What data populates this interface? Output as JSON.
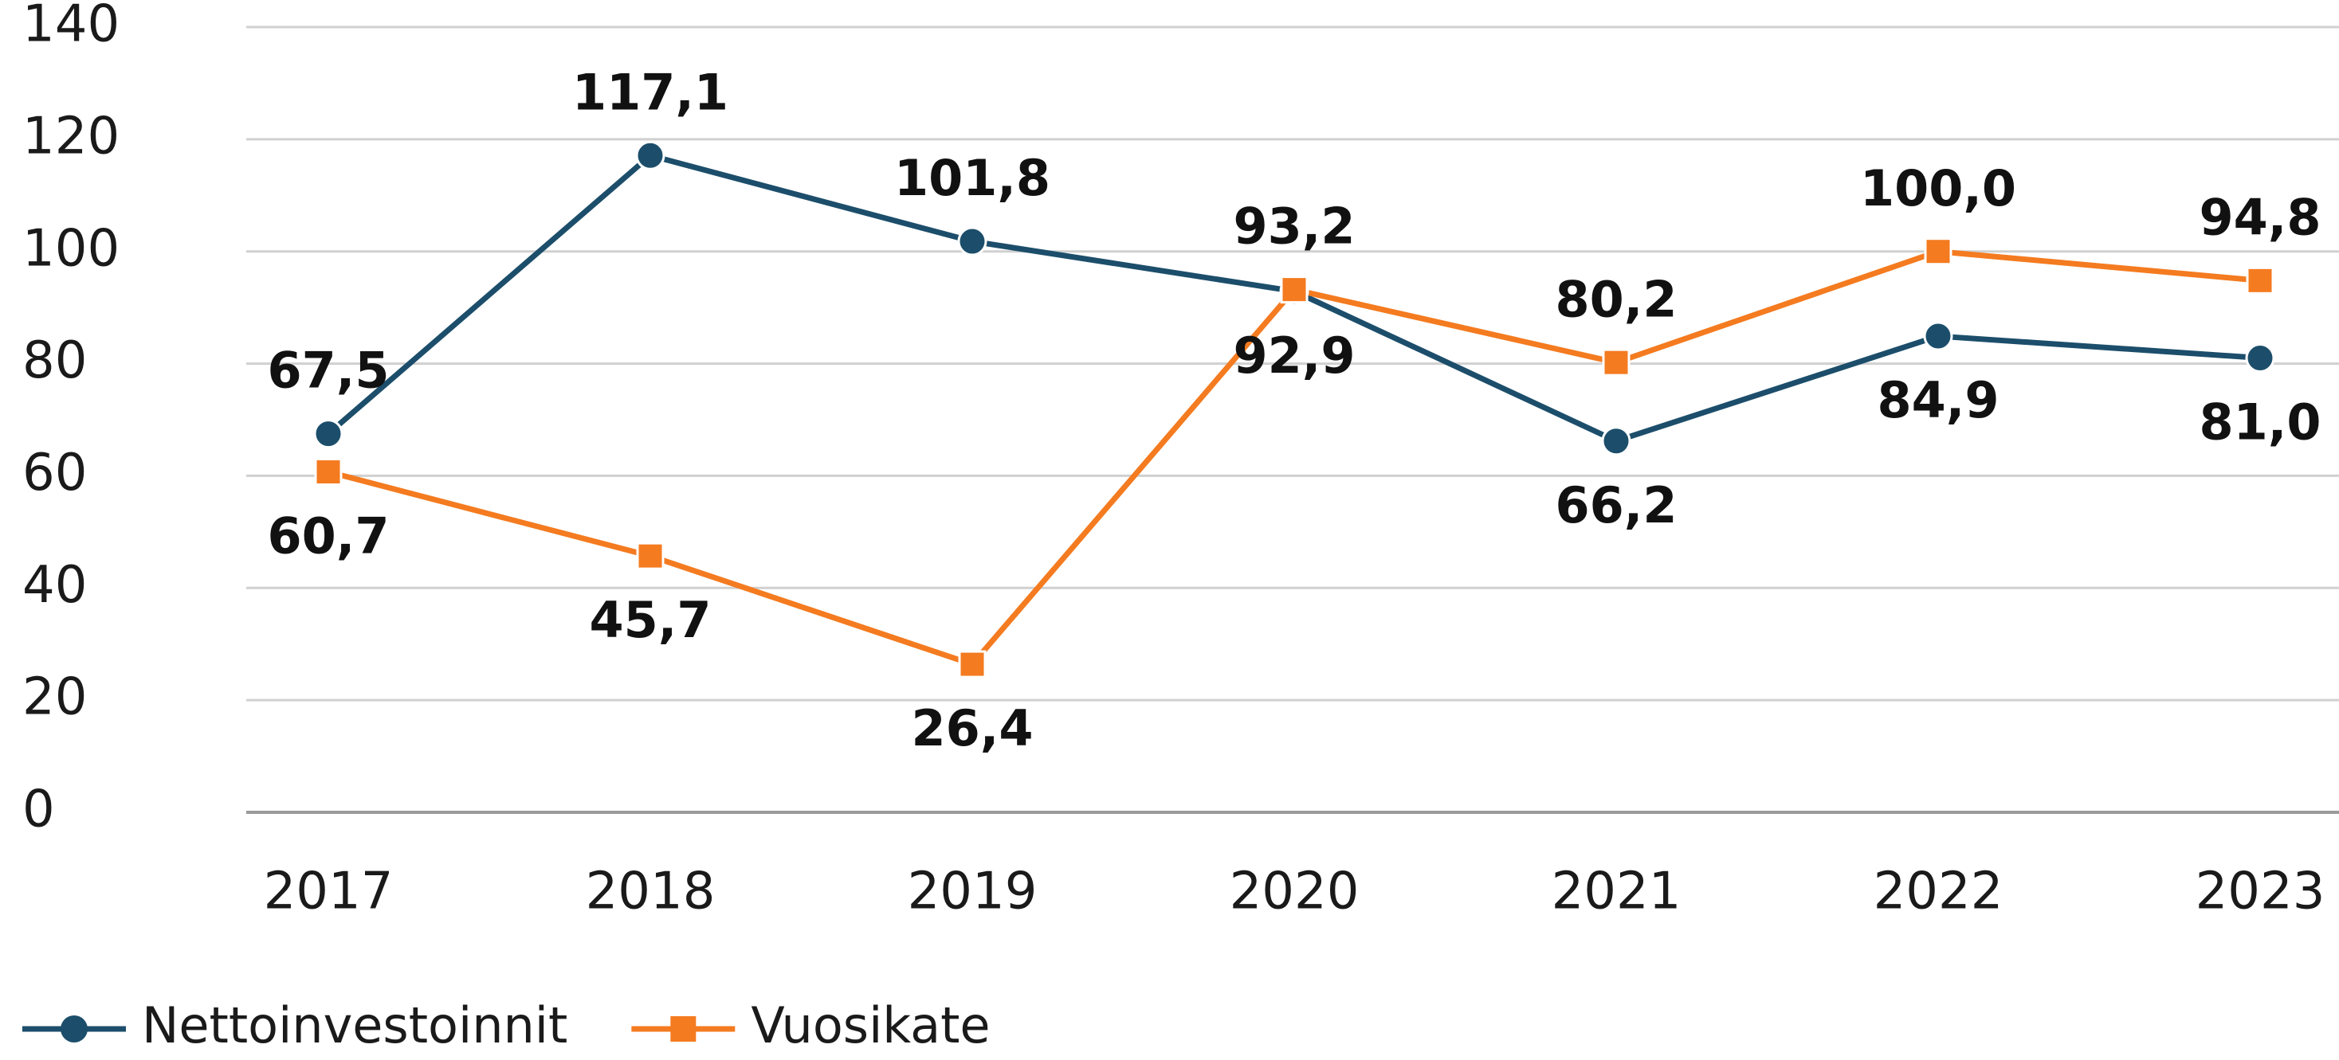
{
  "chart_data": {
    "type": "line",
    "categories": [
      "2017",
      "2018",
      "2019",
      "2020",
      "2021",
      "2022",
      "2023"
    ],
    "series": [
      {
        "name": "Nettoinvestoinnit",
        "color": "#1c4e6b",
        "marker": "circle",
        "values": [
          67.5,
          117.1,
          101.8,
          92.9,
          66.2,
          84.9,
          81.0
        ],
        "value_labels": [
          "67,5",
          "117,1",
          "101,8",
          "92,9",
          "66,2",
          "84,9",
          "81,0"
        ]
      },
      {
        "name": "Vuosikate",
        "color": "#f47b20",
        "marker": "square",
        "values": [
          60.7,
          45.7,
          26.4,
          93.2,
          80.2,
          100.0,
          94.8
        ],
        "value_labels": [
          "60,7",
          "45,7",
          "26,4",
          "93,2",
          "80,2",
          "100,0",
          "94,8"
        ]
      }
    ],
    "ylim": [
      0,
      140
    ],
    "yticks": [
      0,
      20,
      40,
      60,
      80,
      100,
      120,
      140
    ],
    "grid": true,
    "legend": "bottom-left"
  }
}
